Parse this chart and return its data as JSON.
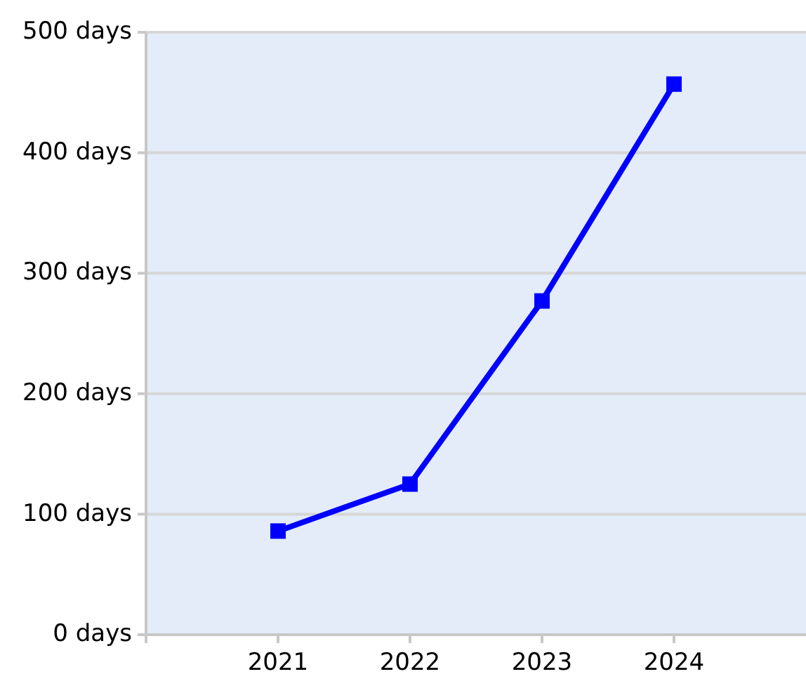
{
  "chart_data": {
    "type": "line",
    "x": [
      2021,
      2022,
      2023,
      2024
    ],
    "series": [
      {
        "color": "#0000ff",
        "values": [
          86,
          125,
          277,
          457
        ]
      }
    ],
    "xlim": [
      2020,
      2025
    ],
    "xticks": [
      {
        "value": 2020,
        "label": null
      },
      2021,
      2022,
      2023,
      2024
    ],
    "ylim": [
      0,
      500
    ],
    "yticks": [
      {
        "value": 0,
        "label": "0 days"
      },
      {
        "value": 100,
        "label": "100 days"
      },
      {
        "value": 200,
        "label": "200 days"
      },
      {
        "value": 300,
        "label": "300 days"
      },
      {
        "value": 400,
        "label": "400 days"
      },
      {
        "value": 500,
        "label": "500 days"
      }
    ],
    "grid": "y",
    "marker": "square",
    "line_style": "solid"
  }
}
